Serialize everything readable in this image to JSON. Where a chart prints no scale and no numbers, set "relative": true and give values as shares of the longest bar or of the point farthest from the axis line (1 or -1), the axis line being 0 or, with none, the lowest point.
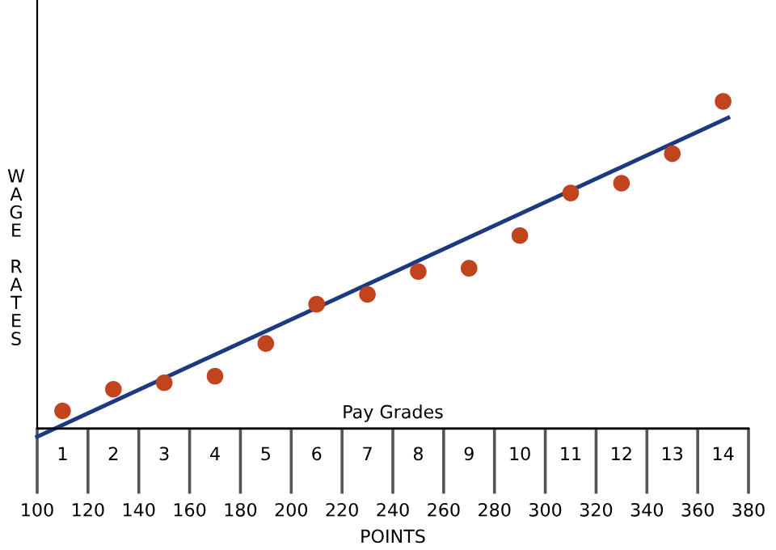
{
  "chart_data": {
    "type": "scatter",
    "relative": true,
    "xlabel": "POINTS",
    "ylabel": "WAGE RATES",
    "x2label": "Pay Grades",
    "xlim": [
      100,
      380
    ],
    "xticks": [
      100,
      120,
      140,
      160,
      180,
      200,
      220,
      240,
      260,
      280,
      300,
      320,
      340,
      360,
      380
    ],
    "x2lim": [
      0.5,
      14.5
    ],
    "x2ticks": [
      1,
      2,
      3,
      4,
      5,
      6,
      7,
      8,
      9,
      10,
      11,
      12,
      13,
      14
    ],
    "grid": false,
    "legend": false,
    "series": [
      {
        "color": "#c2441f",
        "marker": "circle",
        "x": [
          110,
          130,
          150,
          170,
          190,
          210,
          230,
          250,
          270,
          290,
          310,
          330,
          350,
          370
        ],
        "values": [
          0.054,
          0.12,
          0.14,
          0.16,
          0.26,
          0.38,
          0.41,
          0.48,
          0.49,
          0.59,
          0.72,
          0.75,
          0.84,
          1.0
        ]
      },
      {
        "type": "line",
        "color": "#1c3a80",
        "line_style": "solid",
        "x": [
          100,
          372
        ],
        "values": [
          -0.025,
          0.95
        ]
      }
    ]
  }
}
